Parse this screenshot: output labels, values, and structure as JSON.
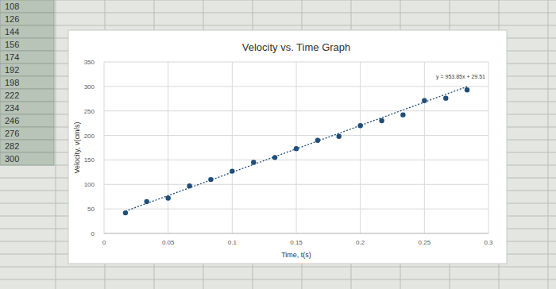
{
  "chart_data": {
    "type": "scatter",
    "title": "Velocity vs. Time Graph",
    "x_label": "Time, t(s)",
    "y_label": "Velocity, v(cm/s)",
    "x": [
      0.0167,
      0.0333,
      0.05,
      0.0667,
      0.0833,
      0.1,
      0.1167,
      0.1333,
      0.15,
      0.1667,
      0.1833,
      0.2,
      0.2167,
      0.2333,
      0.25,
      0.2667,
      0.2833
    ],
    "values": [
      42,
      65,
      72,
      97,
      110,
      127,
      145,
      155,
      173,
      190,
      198,
      220,
      230,
      242,
      271,
      276,
      293
    ],
    "color": "#1f4e79",
    "marker": "circle",
    "xlim": [
      0,
      0.3
    ],
    "xticks": [
      0,
      0.05,
      0.1,
      0.15,
      0.2,
      0.25,
      0.3
    ],
    "ylim": [
      0,
      350
    ],
    "yticks": [
      0,
      50,
      100,
      150,
      200,
      250,
      300,
      350
    ],
    "grid": true,
    "trendline": {
      "slope": 953.85,
      "intercept": 29.51,
      "label": "y = 953.85x + 29.51",
      "line_style": "dotted"
    }
  },
  "spreadsheet": {
    "cells": [
      "108",
      "126",
      "144",
      "156",
      "174",
      "192",
      "198",
      "222",
      "234",
      "246",
      "276",
      "282",
      "300"
    ]
  }
}
